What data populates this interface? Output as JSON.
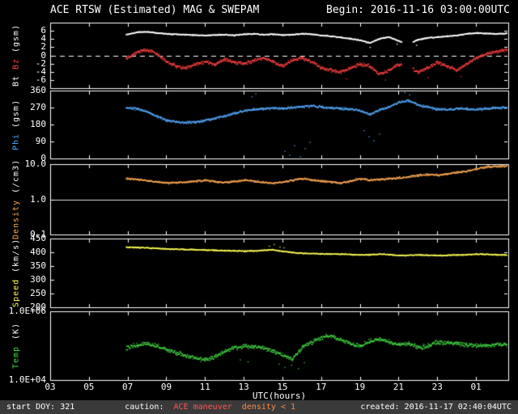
{
  "header": {
    "title": "ACE RTSW (Estimated) MAG & SWEPAM",
    "begin": "Begin: 2016-11-16 03:00:00UTC"
  },
  "footer": {
    "start_doy": "start DOY: 321",
    "caution_label": "caution:",
    "caution_items": [
      {
        "text": "ACE maneuver",
        "color": "#ff5555"
      },
      {
        "text": "density < 1",
        "color": "#ff8844"
      }
    ],
    "created": "created: 2016-11-17 02:40:04UTC"
  },
  "chart_data": {
    "type": "scatter",
    "title": "ACE RTSW (Estimated) MAG & SWEPAM",
    "x_axis": {
      "label": "UTC(hours)",
      "range": [
        3,
        26.67
      ],
      "tick_hours": [
        3,
        5,
        7,
        9,
        11,
        13,
        15,
        17,
        19,
        21,
        23,
        25
      ],
      "tick_labels": [
        "03",
        "05",
        "07",
        "09",
        "11",
        "13",
        "15",
        "17",
        "19",
        "21",
        "23",
        "01"
      ]
    },
    "anchors_x": [
      6.9,
      7.5,
      8.0,
      8.5,
      9.0,
      9.5,
      10.0,
      10.5,
      11.0,
      11.5,
      12.0,
      12.5,
      13.0,
      13.5,
      14.0,
      14.5,
      15.0,
      15.5,
      16.0,
      16.5,
      17.0,
      17.5,
      18.0,
      18.5,
      19.0,
      19.5,
      20.0,
      20.5,
      21.0,
      21.5,
      22.0,
      22.5,
      23.0,
      23.5,
      24.0,
      24.5,
      25.0,
      25.5,
      26.0,
      26.6
    ],
    "panels": [
      {
        "id": "mag",
        "ylabel_parts": [
          {
            "text": "Bt ",
            "color": "#ffffff"
          },
          {
            "text": "Bz ",
            "color": "#ff4040"
          },
          {
            "text": "(gsm)",
            "color": "#ffffff"
          }
        ],
        "scale": "linear",
        "range": [
          -8,
          8
        ],
        "ticks": [
          {
            "v": 6,
            "t": "6"
          },
          {
            "v": 4,
            "t": "4"
          },
          {
            "v": 2,
            "t": "2"
          },
          {
            "v": 0,
            "t": "0"
          },
          {
            "v": -2,
            "t": "-2"
          },
          {
            "v": -4,
            "t": "-4"
          },
          {
            "v": -6,
            "t": "-6"
          }
        ],
        "hline": {
          "value": 0,
          "style": "dashed",
          "color": "#ffffff"
        },
        "series": [
          "bt",
          "bz"
        ]
      },
      {
        "id": "phi",
        "ylabel_parts": [
          {
            "text": "Phi ",
            "color": "#55aaff"
          },
          {
            "text": "(gsm)",
            "color": "#ffffff"
          }
        ],
        "scale": "linear",
        "range": [
          0,
          360
        ],
        "ticks": [
          {
            "v": 360,
            "t": "360"
          },
          {
            "v": 270,
            "t": "270"
          },
          {
            "v": 180,
            "t": "180"
          },
          {
            "v": 90,
            "t": "90"
          },
          {
            "v": 0,
            "t": "0"
          }
        ],
        "series": [
          "phi"
        ]
      },
      {
        "id": "density",
        "ylabel_parts": [
          {
            "text": "Density ",
            "color": "#ffaa55"
          },
          {
            "text": "(/cm3)",
            "color": "#ffffff"
          }
        ],
        "scale": "log",
        "range": [
          0.1,
          10
        ],
        "ticks": [
          {
            "v": 10,
            "t": "10.0"
          },
          {
            "v": 1,
            "t": "1.0"
          },
          {
            "v": 0.1,
            "t": "0.1"
          }
        ],
        "hline": {
          "value": 1,
          "style": "solid",
          "color": "#dddddd"
        },
        "series": [
          "density"
        ]
      },
      {
        "id": "speed",
        "ylabel_parts": [
          {
            "text": "Speed ",
            "color": "#ffff55"
          },
          {
            "text": "(km/s)",
            "color": "#ffffff"
          }
        ],
        "scale": "linear",
        "range": [
          200,
          450
        ],
        "ticks": [
          {
            "v": 450,
            "t": "450"
          },
          {
            "v": 400,
            "t": "400"
          },
          {
            "v": 350,
            "t": "350"
          },
          {
            "v": 300,
            "t": "300"
          },
          {
            "v": 250,
            "t": "250"
          },
          {
            "v": 200,
            "t": "200"
          }
        ],
        "series": [
          "speed"
        ]
      },
      {
        "id": "temp",
        "ylabel_parts": [
          {
            "text": "Temp ",
            "color": "#44dd44"
          },
          {
            "text": "(K)",
            "color": "#ffffff"
          }
        ],
        "scale": "log",
        "range": [
          10000,
          1000000
        ],
        "ticks": [
          {
            "v": 1000000,
            "t": "1.0E+06"
          },
          {
            "v": 10000,
            "t": "1.0E+04"
          }
        ],
        "series": [
          "temp"
        ]
      }
    ],
    "series": {
      "bt": {
        "color": "#ffffff",
        "seed": 11,
        "noise": 0.18,
        "noise_mode": "add",
        "dot": 1.4,
        "values": [
          5.2,
          5.8,
          5.9,
          5.6,
          5.4,
          5.3,
          5.2,
          5.1,
          5.0,
          5.1,
          5.2,
          5.0,
          5.3,
          5.4,
          5.2,
          5.3,
          5.1,
          5.2,
          5.4,
          5.3,
          5.0,
          4.8,
          4.5,
          4.2,
          3.8,
          3.2,
          4.2,
          4.6,
          3.6,
          3.0,
          4.0,
          4.4,
          4.6,
          4.8,
          5.0,
          5.4,
          5.6,
          5.5,
          5.4,
          5.5
        ],
        "gaps": [
          [
            21.15,
            21.7
          ]
        ],
        "extra": [
          [
            19.5,
            2.1
          ],
          [
            21.9,
            2.6
          ],
          [
            20.9,
            2.9
          ]
        ]
      },
      "bz": {
        "color": "#ff4040",
        "seed": 22,
        "noise": 0.6,
        "noise_mode": "add",
        "dot": 1.3,
        "values": [
          -0.5,
          1.0,
          1.5,
          0.5,
          -1.5,
          -2.5,
          -3.0,
          -2.0,
          -1.5,
          -2.0,
          -1.0,
          -1.5,
          -2.0,
          -1.0,
          -0.5,
          -1.5,
          -2.5,
          -1.0,
          -0.5,
          -1.5,
          -3.0,
          -3.5,
          -4.0,
          -3.0,
          -2.0,
          -2.5,
          -4.5,
          -3.5,
          -2.0,
          -2.5,
          -4.0,
          -3.0,
          -1.5,
          -2.5,
          -3.5,
          -2.0,
          -0.5,
          0.5,
          1.0,
          1.5
        ],
        "gaps": [
          [
            21.15,
            21.7
          ]
        ],
        "extra": [
          [
            18.3,
            -5.6
          ],
          [
            20.3,
            -5.9
          ],
          [
            22.5,
            -5.3
          ],
          [
            24.2,
            -5.0
          ]
        ]
      },
      "phi": {
        "color": "#55aaff",
        "seed": 33,
        "noise": 9,
        "noise_mode": "add",
        "dot": 1.3,
        "values": [
          270,
          265,
          250,
          225,
          205,
          195,
          192,
          196,
          205,
          215,
          228,
          242,
          255,
          262,
          266,
          270,
          268,
          272,
          278,
          282,
          275,
          270,
          268,
          265,
          255,
          235,
          262,
          275,
          300,
          310,
          285,
          275,
          265,
          262,
          268,
          264,
          262,
          266,
          270,
          272
        ],
        "gaps": [],
        "extra": [
          [
            15.1,
            40
          ],
          [
            15.35,
            20
          ],
          [
            15.6,
            70
          ],
          [
            15.9,
            12
          ],
          [
            16.15,
            55
          ],
          [
            16.4,
            88
          ],
          [
            19.2,
            150
          ],
          [
            19.45,
            118
          ],
          [
            19.7,
            96
          ],
          [
            20.0,
            132
          ],
          [
            21.3,
            352
          ],
          [
            21.55,
            340
          ],
          [
            13.4,
            330
          ],
          [
            13.6,
            345
          ]
        ]
      },
      "density": {
        "color": "#ffaa55",
        "seed": 44,
        "noise": 0.04,
        "noise_mode": "log",
        "dot": 1.3,
        "values": [
          4.0,
          3.8,
          3.5,
          3.2,
          3.0,
          3.1,
          3.2,
          3.4,
          3.6,
          3.3,
          3.1,
          3.3,
          3.6,
          3.4,
          3.1,
          3.0,
          3.2,
          3.6,
          4.0,
          3.7,
          3.4,
          3.2,
          3.0,
          3.4,
          4.0,
          3.6,
          3.8,
          4.0,
          4.2,
          4.5,
          5.0,
          5.2,
          5.0,
          5.5,
          6.0,
          6.5,
          7.5,
          8.5,
          8.8,
          9.0
        ],
        "gaps": [],
        "extra": [
          [
            25.6,
            9.6
          ],
          [
            26.2,
            9.8
          ]
        ]
      },
      "speed": {
        "color": "#ffff55",
        "seed": 55,
        "noise": 3,
        "noise_mode": "add",
        "dot": 1.3,
        "values": [
          421,
          419,
          418,
          416,
          414,
          413,
          412,
          411,
          410,
          409,
          408,
          407,
          406,
          407,
          409,
          411,
          405,
          401,
          398,
          397,
          396,
          395,
          395,
          394,
          392,
          393,
          395,
          393,
          390,
          391,
          392,
          391,
          390,
          391,
          392,
          393,
          395,
          394,
          393,
          392
        ],
        "gaps": [],
        "extra": [
          [
            14.3,
            424
          ],
          [
            14.55,
            430
          ],
          [
            14.85,
            421
          ],
          [
            15.05,
            418
          ]
        ]
      },
      "temp": {
        "color": "#44dd44",
        "seed": 66,
        "noise": 0.09,
        "noise_mode": "log",
        "dot": 1.3,
        "values": [
          90000,
          110000,
          120000,
          100000,
          80000,
          65000,
          50000,
          45000,
          40000,
          50000,
          70000,
          90000,
          100000,
          95000,
          90000,
          70000,
          55000,
          40000,
          90000,
          130000,
          180000,
          200000,
          150000,
          120000,
          100000,
          140000,
          160000,
          130000,
          110000,
          120000,
          90000,
          100000,
          130000,
          125000,
          120000,
          110000,
          100000,
          105000,
          110000,
          110000
        ],
        "gaps": [],
        "extra": [
          [
            14.8,
            30000
          ],
          [
            15.1,
            24000
          ],
          [
            15.45,
            28000
          ],
          [
            15.8,
            22000
          ],
          [
            16.1,
            33000
          ],
          [
            13.2,
            35000
          ],
          [
            12.8,
            40000
          ]
        ]
      }
    }
  }
}
